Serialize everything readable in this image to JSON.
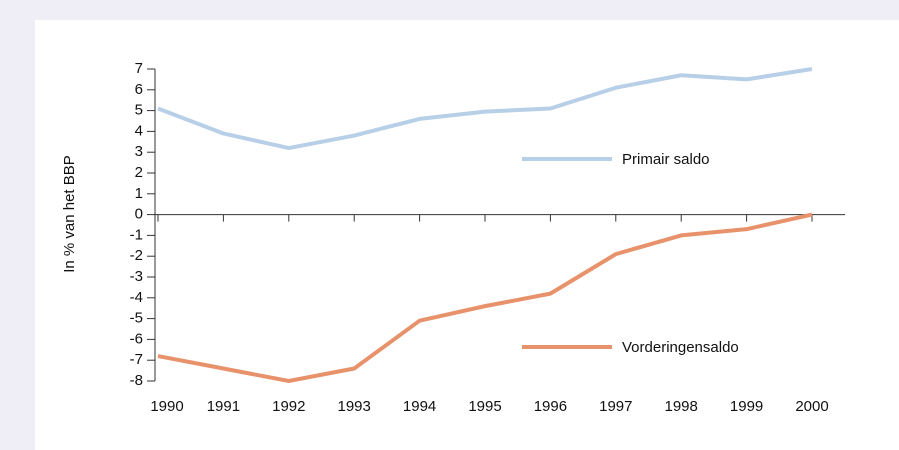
{
  "chart_data": {
    "type": "line",
    "ylabel": "In % van het BBP",
    "categories": [
      "1990",
      "1991",
      "1992",
      "1993",
      "1994",
      "1995",
      "1996",
      "1997",
      "1998",
      "1999",
      "2000"
    ],
    "series": [
      {
        "name": "Primair saldo",
        "color": "#b8cfe8",
        "values": [
          5.1,
          3.9,
          3.2,
          3.8,
          4.6,
          4.95,
          5.1,
          6.1,
          6.7,
          6.5,
          7.0
        ]
      },
      {
        "name": "Vorderingensaldo",
        "color": "#e8926c",
        "values": [
          -6.8,
          -7.4,
          -8.0,
          -7.4,
          -5.1,
          -4.4,
          -3.8,
          -1.9,
          -1.0,
          -0.7,
          0.0
        ]
      }
    ],
    "ylim": [
      -8,
      7
    ],
    "yticks": [
      -8,
      -7,
      -6,
      -5,
      -4,
      -3,
      -2,
      -1,
      0,
      1,
      2,
      3,
      4,
      5,
      6,
      7
    ],
    "grid": false
  }
}
